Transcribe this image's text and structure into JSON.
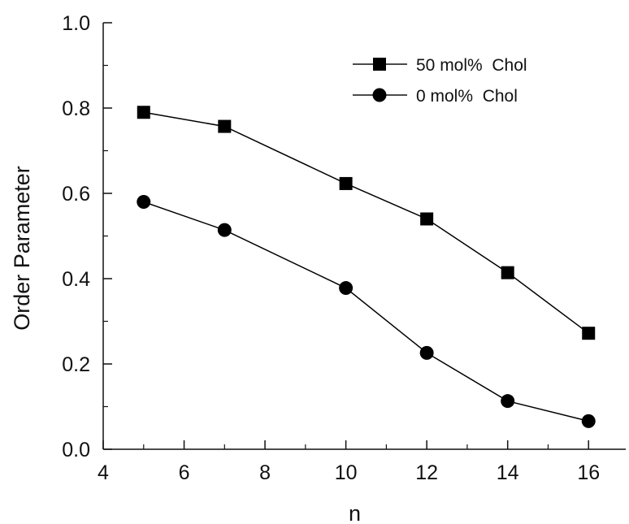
{
  "chart_data": {
    "type": "line",
    "title": "",
    "xlabel": "n",
    "ylabel": "Order Parameter",
    "xlim": [
      4,
      17
    ],
    "ylim": [
      0.0,
      1.0
    ],
    "x_ticks": [
      "4",
      "6",
      "8",
      "10",
      "12",
      "14",
      "16"
    ],
    "y_ticks": [
      "0.0",
      "0.2",
      "0.4",
      "0.6",
      "0.8",
      "1.0"
    ],
    "grid": false,
    "legend_position": "top-right",
    "series": [
      {
        "name": "50 mol%  Chol",
        "marker": "square",
        "color": "#000000",
        "x": [
          5,
          7,
          10,
          12,
          14,
          16
        ],
        "y": [
          0.79,
          0.757,
          0.623,
          0.54,
          0.414,
          0.272
        ]
      },
      {
        "name": "0 mol%  Chol",
        "marker": "circle",
        "color": "#000000",
        "x": [
          5,
          7,
          10,
          12,
          14,
          16
        ],
        "y": [
          0.58,
          0.514,
          0.378,
          0.226,
          0.113,
          0.066
        ]
      }
    ]
  }
}
